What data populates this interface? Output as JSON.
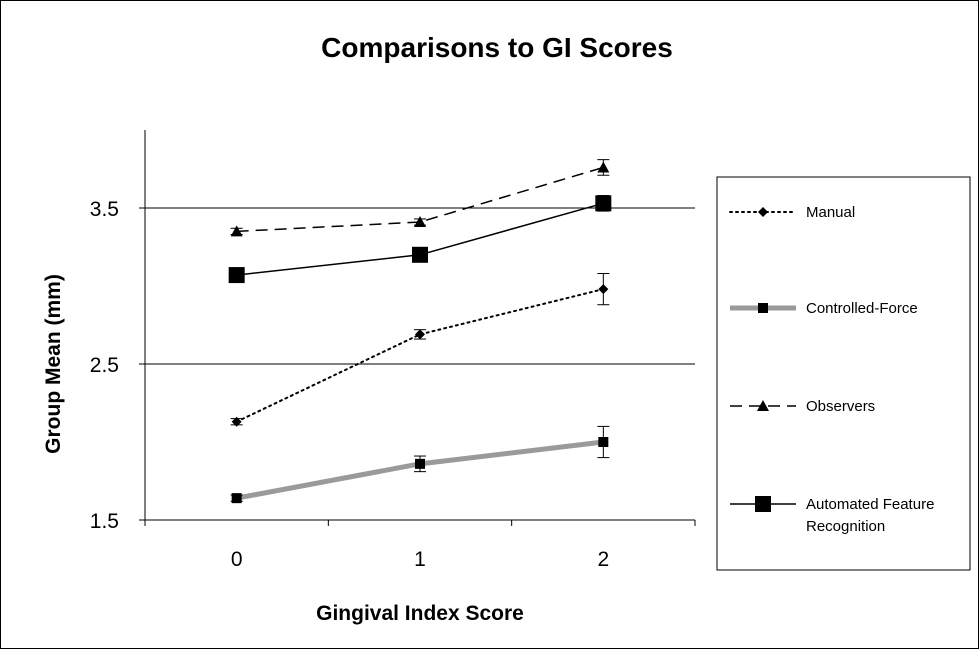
{
  "chart_data": {
    "type": "line",
    "title": "Comparisons to GI Scores",
    "xlabel": "Gingival Index Score",
    "ylabel": "Group Mean (mm)",
    "categories": [
      "0",
      "1",
      "2"
    ],
    "y_ticks": [
      "1.5",
      "2.5",
      "3.5"
    ],
    "ylim": [
      1.5,
      4.0
    ],
    "grid": "horizontal at 2.5 and 3.5",
    "legend_position": "right",
    "series": [
      {
        "name": "Manual",
        "values": [
          2.13,
          2.69,
          2.98
        ],
        "errors": [
          0.02,
          0.03,
          0.1
        ],
        "line_style": "dotted",
        "marker": "diamond",
        "color": "#000000"
      },
      {
        "name": "Controlled-Force",
        "values": [
          1.64,
          1.86,
          2.0
        ],
        "errors": [
          0.02,
          0.05,
          0.1
        ],
        "line_style": "thick-gray",
        "marker": "square",
        "color": "#9a9a9a"
      },
      {
        "name": "Observers",
        "values": [
          3.35,
          3.41,
          3.76
        ],
        "errors": [
          0.02,
          0.02,
          0.05
        ],
        "line_style": "dashed",
        "marker": "triangle",
        "color": "#000000"
      },
      {
        "name": "Automated Feature Recognition",
        "legend_lines": [
          "Automated Feature",
          "Recognition"
        ],
        "values": [
          3.07,
          3.2,
          3.53
        ],
        "errors": [
          0.0,
          0.0,
          0.05
        ],
        "line_style": "solid",
        "marker": "large-square",
        "color": "#000000"
      }
    ]
  }
}
